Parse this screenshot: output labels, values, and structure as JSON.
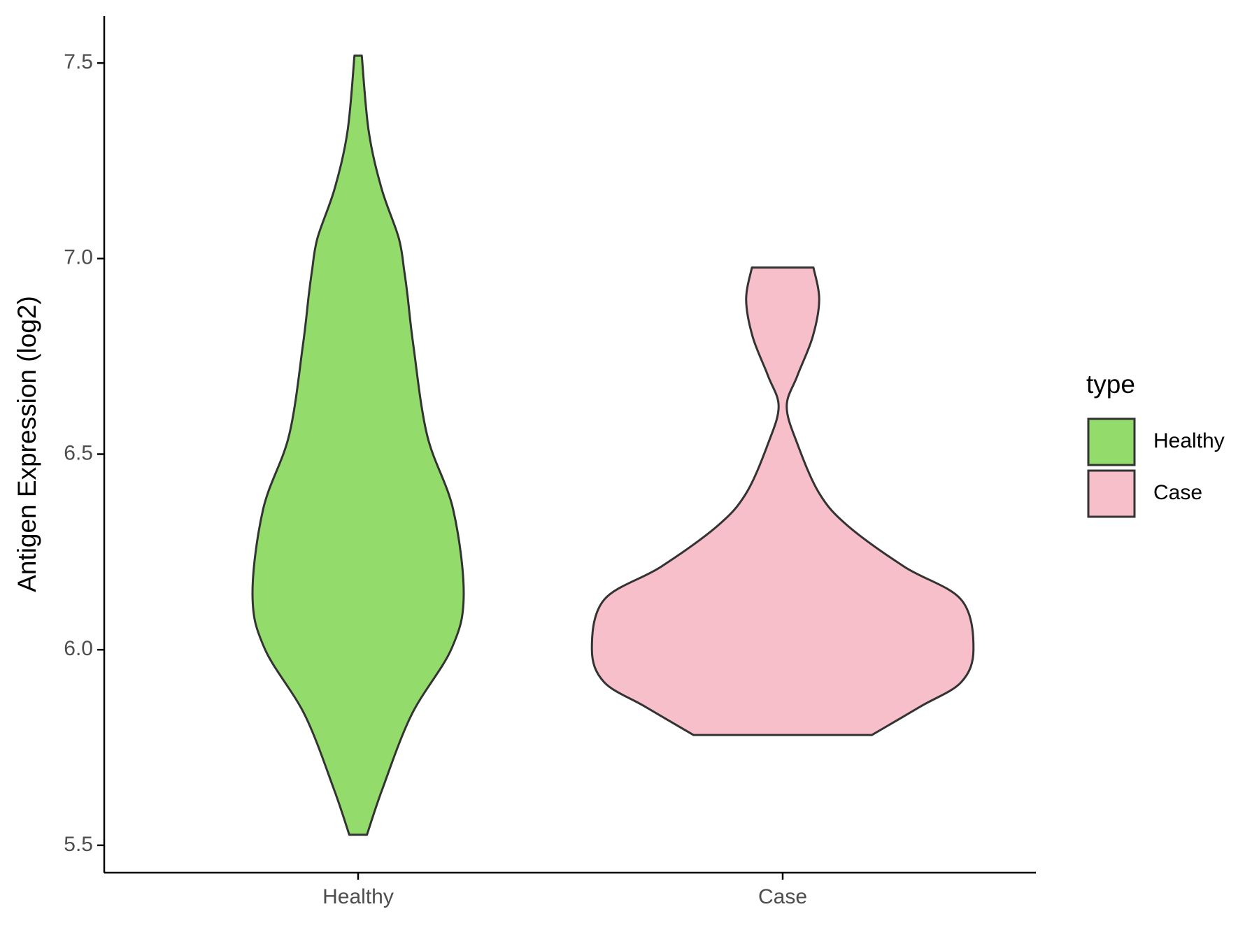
{
  "chart_data": {
    "type": "violin",
    "y_label": "Antigen Expression (log2)",
    "categories": [
      "Healthy",
      "Case"
    ],
    "legend_title": "type",
    "series": [
      {
        "name": "Healthy",
        "color": "#93dc6b",
        "y": [
          7.519,
          7.326,
          7.179,
          7.053,
          6.968,
          6.905,
          6.779,
          6.548,
          6.359,
          6.139,
          6.002,
          5.834,
          5.645,
          5.527
        ],
        "width": [
          0.019,
          0.055,
          0.122,
          0.211,
          0.24,
          0.257,
          0.287,
          0.359,
          0.494,
          0.549,
          0.485,
          0.278,
          0.127,
          0.046
        ]
      },
      {
        "name": "Case",
        "color": "#f7bfca",
        "y": [
          6.977,
          6.895,
          6.8,
          6.7,
          6.622,
          6.527,
          6.4,
          6.317,
          6.212,
          6.128,
          6.002,
          5.917,
          5.855,
          5.782
        ],
        "width": [
          0.16,
          0.19,
          0.156,
          0.076,
          0.021,
          0.076,
          0.19,
          0.338,
          0.633,
          0.928,
          0.992,
          0.928,
          0.717,
          0.464
        ]
      }
    ],
    "ylim": [
      5.43,
      7.62
    ],
    "yticks": [
      5.5,
      {
        "value": 6,
        "label": "6.0"
      },
      6.5,
      {
        "value": 7,
        "label": "7.0"
      },
      7.5
    ]
  }
}
